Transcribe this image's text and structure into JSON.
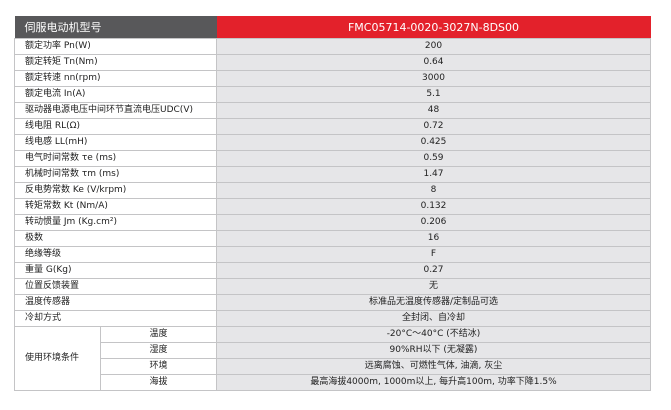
{
  "header": {
    "label": "伺服电动机型号",
    "model": "FMC05714-0020-3027N-8DS00"
  },
  "rows": [
    {
      "label": "额定功率 Pn(W)",
      "value": "200"
    },
    {
      "label": "额定转矩 Tn(Nm)",
      "value": "0.64"
    },
    {
      "label": "额定转速 nn(rpm)",
      "value": "3000"
    },
    {
      "label": "额定电流 In(A)",
      "value": "5.1"
    },
    {
      "label": "驱动器电源电压中间环节直流电压UDC(V)",
      "value": "48"
    },
    {
      "label": "线电阻 RL(Ω)",
      "value": "0.72"
    },
    {
      "label": "线电感 LL(mH)",
      "value": "0.425"
    },
    {
      "label": "电气时间常数 τe (ms)",
      "value": "0.59"
    },
    {
      "label": "机械时间常数 τm (ms)",
      "value": "1.47"
    },
    {
      "label": "反电势常数 Ke (V/krpm)",
      "value": "8"
    },
    {
      "label": "转矩常数 Kt (Nm/A)",
      "value": "0.132"
    },
    {
      "label": "转动惯量 Jm (Kg.cm²)",
      "value": "0.206"
    },
    {
      "label": "极数",
      "value": "16"
    },
    {
      "label": "绝缘等级",
      "value": "F"
    },
    {
      "label": "重量 G(Kg)",
      "value": "0.27"
    },
    {
      "label": "位置反馈装置",
      "value": "无"
    },
    {
      "label": "温度传感器",
      "value": "标准品无温度传感器/定制品可选"
    },
    {
      "label": "冷却方式",
      "value": "全封闭、自冷却"
    }
  ],
  "environment": {
    "label": "使用环境条件",
    "items": [
      {
        "label": "温度",
        "value": "-20°C～40°C (不结冰)"
      },
      {
        "label": "湿度",
        "value": "90%RH以下 (无凝露)"
      },
      {
        "label": "环境",
        "value": "远离腐蚀、可燃性气体, 油滴, 灰尘"
      },
      {
        "label": "海拔",
        "value": "最高海拔4000m, 1000m以上, 每升高100m, 功率下降1.5%"
      }
    ]
  }
}
